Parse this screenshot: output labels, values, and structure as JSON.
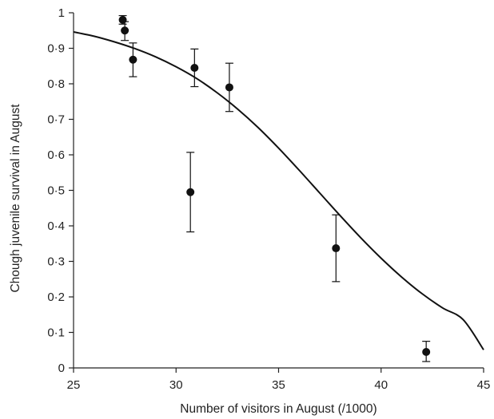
{
  "chart_data": {
    "type": "scatter",
    "title": "",
    "xlabel": "Number of visitors in August (/1000)",
    "ylabel": "Chough juvenile survival in August",
    "xlim": [
      25,
      45
    ],
    "ylim": [
      0,
      1
    ],
    "x_ticks": [
      25,
      30,
      35,
      40,
      45
    ],
    "y_ticks": [
      0,
      0.1,
      0.2,
      0.3,
      0.4,
      0.5,
      0.6,
      0.7,
      0.8,
      0.9,
      1
    ],
    "x_tick_labels": [
      "25",
      "30",
      "35",
      "40",
      "45"
    ],
    "y_tick_labels": [
      "0",
      "0·1",
      "0·2",
      "0·3",
      "0·4",
      "0·5",
      "0·6",
      "0·7",
      "0·8",
      "0·9",
      "1"
    ],
    "grid": false,
    "legend": "none",
    "points": [
      {
        "x": 27.4,
        "y": 0.98,
        "y_low": 0.968,
        "y_high": 0.992
      },
      {
        "x": 27.5,
        "y": 0.95,
        "y_low": 0.922,
        "y_high": 0.975
      },
      {
        "x": 27.9,
        "y": 0.868,
        "y_low": 0.82,
        "y_high": 0.915
      },
      {
        "x": 30.7,
        "y": 0.495,
        "y_low": 0.383,
        "y_high": 0.607
      },
      {
        "x": 30.9,
        "y": 0.845,
        "y_low": 0.792,
        "y_high": 0.898
      },
      {
        "x": 32.6,
        "y": 0.79,
        "y_low": 0.722,
        "y_high": 0.858
      },
      {
        "x": 37.8,
        "y": 0.337,
        "y_low": 0.243,
        "y_high": 0.431
      },
      {
        "x": 42.2,
        "y": 0.045,
        "y_low": 0.018,
        "y_high": 0.075
      }
    ],
    "fitted_curve": {
      "type": "logistic",
      "x": [
        25,
        26,
        27,
        28,
        29,
        30,
        31,
        32,
        33,
        34,
        35,
        36,
        37,
        38,
        39,
        40,
        41,
        42,
        43,
        44,
        45
      ],
      "y": [
        0.946,
        0.934,
        0.918,
        0.899,
        0.876,
        0.848,
        0.815,
        0.775,
        0.729,
        0.677,
        0.619,
        0.557,
        0.493,
        0.429,
        0.367,
        0.309,
        0.256,
        0.209,
        0.169,
        0.136,
        0.051
      ]
    },
    "colors": {
      "marks": "#111111",
      "axes": "#222222"
    }
  }
}
